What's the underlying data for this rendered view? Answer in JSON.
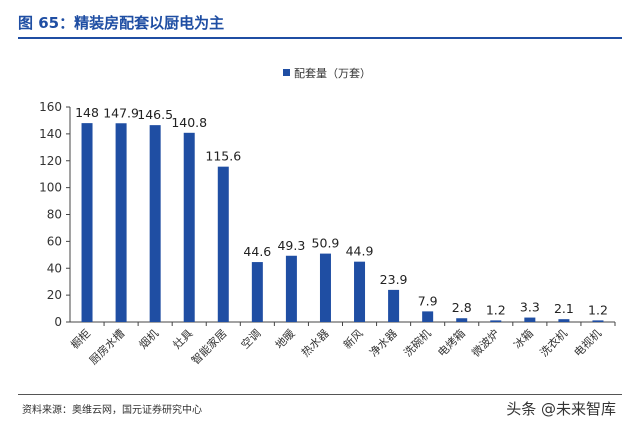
{
  "figure": {
    "title": "图 65：精装房配套以厨电为主",
    "source": "资料来源：奥维云网，国元证券研究中心",
    "watermark": "头条 @未来智库"
  },
  "colors": {
    "bar": "#1f4ea3",
    "title": "#1f4ea3"
  },
  "chart_data": {
    "type": "bar",
    "title": "",
    "xlabel": "",
    "ylabel": "",
    "ylim": [
      0,
      160
    ],
    "yticks": [
      0,
      20,
      40,
      60,
      80,
      100,
      120,
      140,
      160
    ],
    "grid": false,
    "legend_position": "top-center",
    "categories": [
      "橱柜",
      "厨房水槽",
      "烟机",
      "灶具",
      "智能家居",
      "空调",
      "地暖",
      "热水器",
      "新风",
      "净水器",
      "洗碗机",
      "电烤箱",
      "微波炉",
      "冰箱",
      "洗衣机",
      "电视机"
    ],
    "series": [
      {
        "name": "配套量（万套）",
        "values": [
          148,
          147.9,
          146.5,
          140.8,
          115.6,
          44.6,
          49.3,
          50.9,
          44.9,
          23.9,
          7.9,
          2.8,
          1.2,
          3.3,
          2.1,
          1.2
        ],
        "labels": [
          "148",
          "147.9",
          "146.5",
          "140.8",
          "115.6",
          "44.6",
          "49.3",
          "50.9",
          "44.9",
          "23.9",
          "7.9",
          "2.8",
          "1.2",
          "3.3",
          "2.1",
          "1.2"
        ]
      }
    ]
  }
}
